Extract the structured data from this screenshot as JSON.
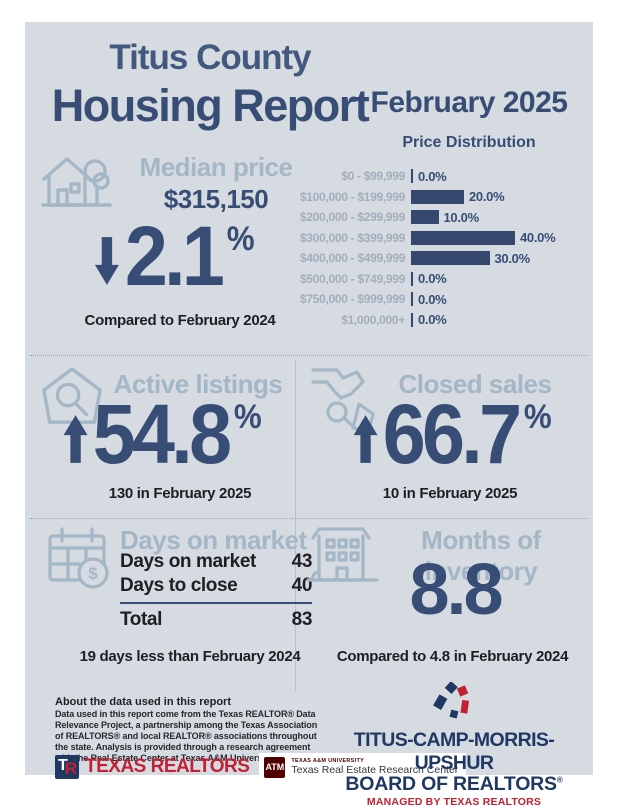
{
  "header": {
    "title_line1": "Titus County",
    "title_line2": "Housing Report",
    "date": "February 2025"
  },
  "chart_data": {
    "type": "bar",
    "orientation": "horizontal",
    "title": "Price Distribution",
    "categories": [
      "$0 - $99,999",
      "$100,000 - $199,999",
      "$200,000 - $299,999",
      "$300,000 - $399,999",
      "$400,000 - $499,999",
      "$500,000 - $749,999",
      "$750,000 - $999,999",
      "$1,000,000+"
    ],
    "values": [
      0.0,
      20.0,
      10.0,
      40.0,
      30.0,
      0.0,
      0.0,
      0.0
    ],
    "value_suffix": "%",
    "xlim": [
      0,
      50
    ],
    "bar_color": "#36486d",
    "legend": "none",
    "grid": "off"
  },
  "median_price": {
    "heading": "Median price",
    "value": "$315,150",
    "change": "2.1",
    "unit": "%",
    "direction": "down",
    "note": "Compared to February 2024"
  },
  "active_listings": {
    "heading": "Active listings",
    "change": "54.8",
    "unit": "%",
    "direction": "up",
    "note": "130 in February 2025"
  },
  "closed_sales": {
    "heading": "Closed sales",
    "change": "66.7",
    "unit": "%",
    "direction": "up",
    "note": "10 in February 2025"
  },
  "days_on_market": {
    "heading": "Days on market",
    "rows": [
      {
        "label": "Days on market",
        "value": "43"
      },
      {
        "label": "Days to close",
        "value": "40"
      }
    ],
    "total_label": "Total",
    "total_value": "83",
    "note": "19 days less than February 2024"
  },
  "months_inventory": {
    "heading": "Months of inventory",
    "value": "8.8",
    "note": "Compared to 4.8 in February 2024"
  },
  "about": {
    "heading": "About the data used in this report",
    "body": "Data used in this report come from the Texas REALTOR® Data Relevance Project, a partnership among the Texas Association of REALTORS® and local REALTOR® associations throughout the state. Analysis is provided through a research agreement with the Real Estate Center at Texas A&M University."
  },
  "logos": {
    "tr_t": "T",
    "tr_r": "R",
    "texas_realtors_label": "TEXAS REALTORS",
    "tamu_monogram": "ATM",
    "tamu_small": "TEXAS A&M UNIVERSITY",
    "tamu_name": "Texas Real Estate Research Center"
  },
  "board": {
    "line1": "TITUS-CAMP-MORRIS-UPSHUR",
    "line2": "BOARD OF REALTORS",
    "mark": "®",
    "managed": "MANAGED BY TEXAS REALTORS"
  },
  "colors": {
    "navy": "#374d76",
    "bar": "#36486d",
    "light_blue": "#a4b7c6",
    "chart_label": "#a2aebc",
    "ink": "#1d1f24",
    "red": "#c22033",
    "maroon": "#500000",
    "page_bg": "#d6dae1"
  }
}
